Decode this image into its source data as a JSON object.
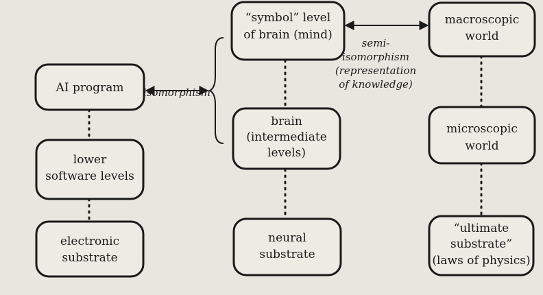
{
  "nodes": {
    "ai_program": {
      "lines": [
        "AI program"
      ]
    },
    "lower_software": {
      "lines": [
        "lower",
        "software levels"
      ]
    },
    "electronic_substrate": {
      "lines": [
        "electronic",
        "substrate"
      ]
    },
    "symbol_level": {
      "lines": [
        "“symbol” level",
        "of brain (mind)"
      ]
    },
    "brain_intermediate": {
      "lines": [
        "brain",
        "(intermediate",
        "levels)"
      ]
    },
    "neural_substrate": {
      "lines": [
        "neural",
        "substrate"
      ]
    },
    "macroscopic_world": {
      "lines": [
        "macroscopic",
        "world"
      ]
    },
    "microscopic_world": {
      "lines": [
        "microscopic",
        "world"
      ]
    },
    "ultimate_substrate": {
      "lines": [
        "“ultimate",
        "substrate”",
        "(laws of physics)"
      ]
    }
  },
  "edges": {
    "isomorphism": {
      "label": "isomorphism"
    },
    "semi_isomorphism": {
      "lines": [
        "semi-",
        "isomorphism",
        "(representation",
        "of knowledge)"
      ]
    }
  },
  "colors": {
    "ink": "#1a1a1a",
    "paper": "#e9e6df",
    "box": "#eeebe4"
  }
}
